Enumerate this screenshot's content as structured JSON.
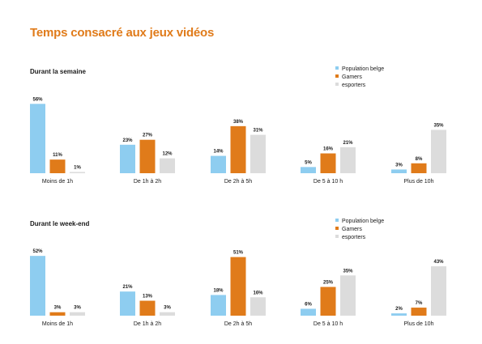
{
  "title": "Temps consacré aux jeux vidéos",
  "colors": {
    "title": "#e07b1a",
    "series": [
      "#8ecdf0",
      "#e07b1a",
      "#dcdcdc"
    ]
  },
  "chart_data": [
    {
      "type": "bar",
      "title": "Durant la semaine",
      "categories": [
        "Moins de 1h",
        "De 1h à 2h",
        "De 2h à 5h",
        "De 5 à 10 h",
        "Plus de 10h"
      ],
      "series": [
        {
          "name": "Population belge",
          "values": [
            56,
            23,
            14,
            5,
            3
          ]
        },
        {
          "name": "Gamers",
          "values": [
            11,
            27,
            38,
            16,
            8
          ]
        },
        {
          "name": "esporters",
          "values": [
            1,
            12,
            31,
            21,
            35
          ]
        }
      ],
      "value_suffix": "%",
      "legend": "top-right",
      "grid": false
    },
    {
      "type": "bar",
      "title": "Durant le week-end",
      "categories": [
        "Moins de 1h",
        "De 1h à 2h",
        "De 2h à 5h",
        "De 5 à 10 h",
        "Plus de 10h"
      ],
      "series": [
        {
          "name": "Population belge",
          "values": [
            52,
            21,
            18,
            6,
            2
          ]
        },
        {
          "name": "Gamers",
          "values": [
            3,
            13,
            51,
            25,
            7
          ]
        },
        {
          "name": "esporters",
          "values": [
            3,
            3,
            16,
            35,
            43
          ]
        }
      ],
      "value_suffix": "%",
      "legend": "top-right",
      "grid": false
    }
  ]
}
